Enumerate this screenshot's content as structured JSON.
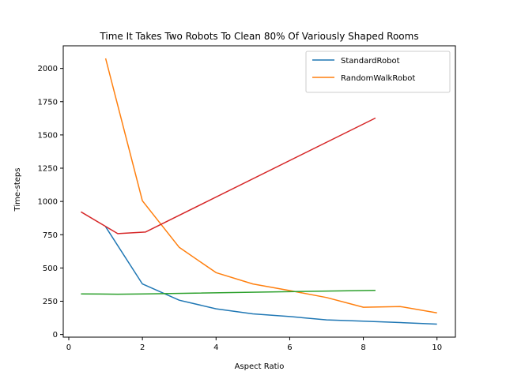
{
  "chart_data": {
    "type": "line",
    "title": "Time It Takes Two Robots To Clean 80% Of Variously Shaped Rooms",
    "xlabel": "Aspect Ratio",
    "ylabel": "Time-steps",
    "xlim": [
      -0.15,
      10.5
    ],
    "ylim": [
      -20,
      2170
    ],
    "xticks": [
      0,
      2,
      4,
      6,
      8,
      10
    ],
    "yticks": [
      0,
      250,
      500,
      750,
      1000,
      1250,
      1500,
      1750,
      2000
    ],
    "grid": false,
    "legend_position": "top-right",
    "series": [
      {
        "name": "StandardRobot",
        "color": "#1f77b4",
        "x": [
          1.0,
          2.0,
          3.0,
          4.0,
          5.0,
          6.0,
          7.0,
          8.0,
          9.0,
          10.0
        ],
        "y": [
          810,
          380,
          258,
          193,
          155,
          135,
          110,
          100,
          90,
          78
        ]
      },
      {
        "name": "RandomWalkRobot",
        "color": "#ff7f0e",
        "x": [
          1.0,
          2.0,
          3.0,
          4.0,
          5.0,
          6.0,
          7.0,
          8.0,
          9.0,
          10.0
        ],
        "y": [
          2075,
          1005,
          655,
          465,
          380,
          330,
          278,
          205,
          210,
          162
        ]
      },
      {
        "name": "",
        "color": "#2ca02c",
        "x": [
          0.33,
          1.33,
          2.08,
          8.33
        ],
        "y": [
          305,
          303,
          305,
          332
        ]
      },
      {
        "name": "",
        "color": "#d62728",
        "x": [
          0.33,
          1.33,
          2.08,
          8.33
        ],
        "y": [
          922,
          758,
          770,
          1627
        ]
      }
    ]
  }
}
